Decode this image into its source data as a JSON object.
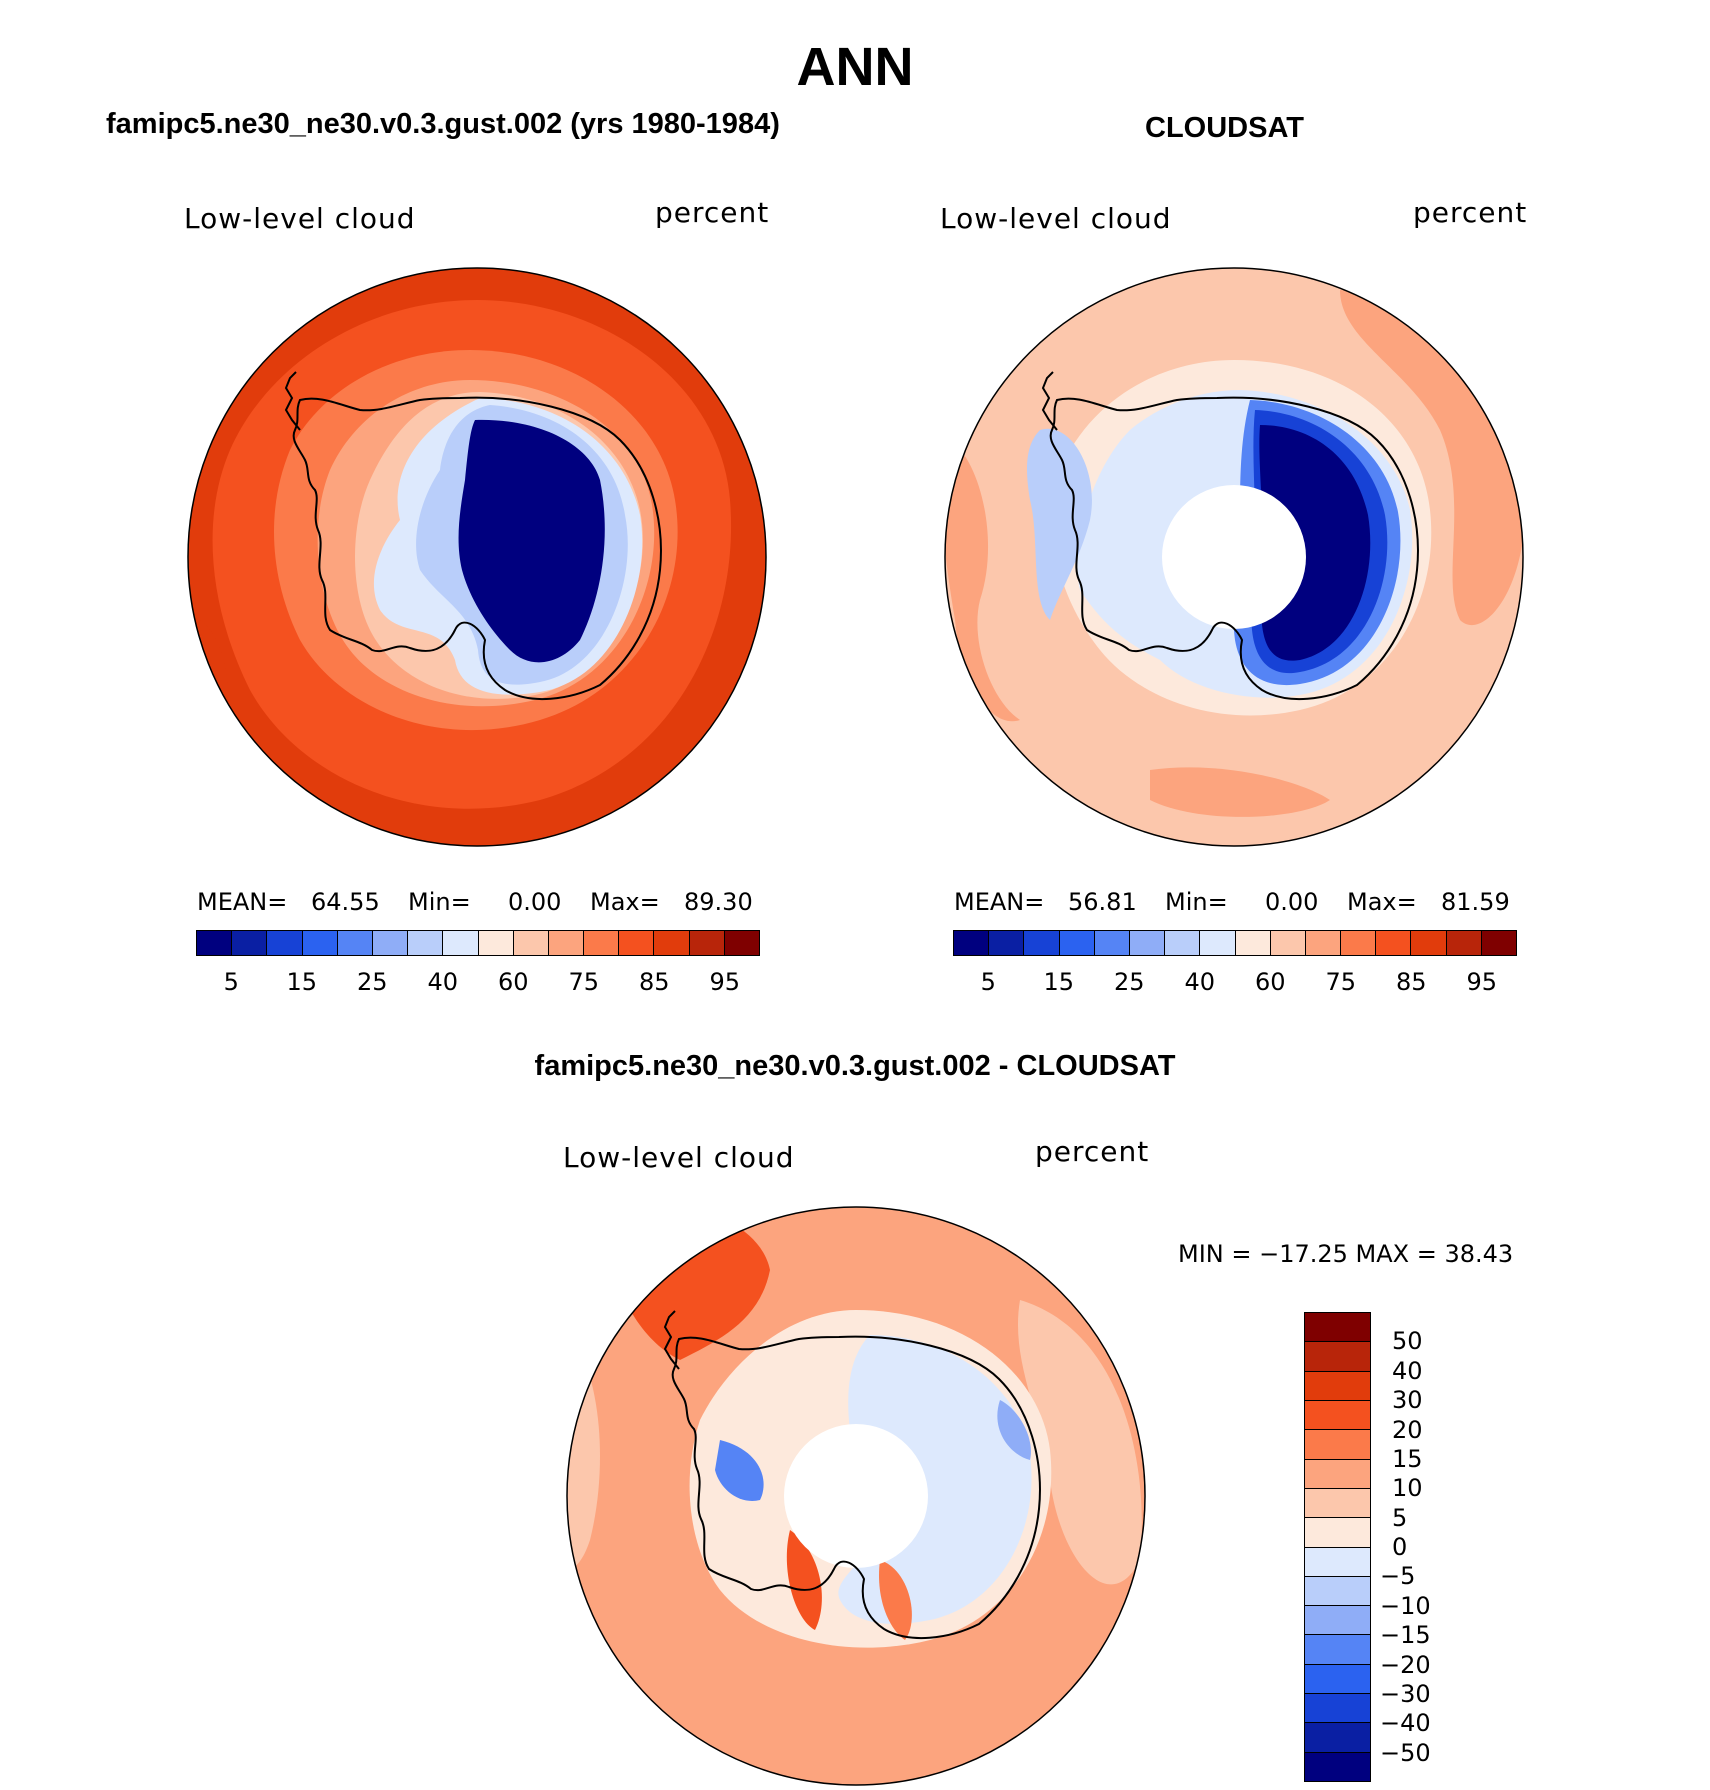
{
  "title": "ANN",
  "panels": [
    {
      "title": "famipc5.ne30_ne30.v0.3.gust.002 (yrs 1980-1984)",
      "variable": "Low-level cloud",
      "units": "percent",
      "mean_label": "MEAN=",
      "mean": "64.55",
      "min_label": "Min=",
      "min": "0.00",
      "max_label": "Max=",
      "max": "89.30"
    },
    {
      "title": "CLOUDSAT",
      "variable": "Low-level cloud",
      "units": "percent",
      "mean_label": "MEAN=",
      "mean": "56.81",
      "min_label": "Min=",
      "min": "0.00",
      "max_label": "Max=",
      "max": "81.59"
    },
    {
      "title": "famipc5.ne30_ne30.v0.3.gust.002 - CLOUDSAT",
      "variable": "Low-level cloud",
      "units": "percent",
      "minmax": "MIN = −17.25 MAX =   38.43"
    }
  ],
  "colorbar_abs": {
    "ticks": [
      "5",
      "15",
      "25",
      "40",
      "60",
      "75",
      "85",
      "95"
    ],
    "colors": [
      "#00007f",
      "#0a1fa3",
      "#1742d6",
      "#2b62f0",
      "#5584f5",
      "#8fadf7",
      "#b9cefa",
      "#dde9fd",
      "#fde9dc",
      "#fcc7ac",
      "#fca47e",
      "#fb7a4a",
      "#f4511f",
      "#e13c0c",
      "#b8250a",
      "#7f0000"
    ]
  },
  "colorbar_diff": {
    "ticks": [
      "50",
      "40",
      "30",
      "20",
      "15",
      "10",
      "5",
      "0",
      "−5",
      "−10",
      "−15",
      "−20",
      "−30",
      "−40",
      "−50"
    ],
    "colors": [
      "#7f0000",
      "#b8250a",
      "#e13c0c",
      "#f4511f",
      "#fb7a4a",
      "#fca47e",
      "#fcc7ac",
      "#fde9dc",
      "#dde9fd",
      "#b9cefa",
      "#8fadf7",
      "#5584f5",
      "#2b62f0",
      "#1742d6",
      "#0a1fa3",
      "#00007f"
    ]
  }
}
